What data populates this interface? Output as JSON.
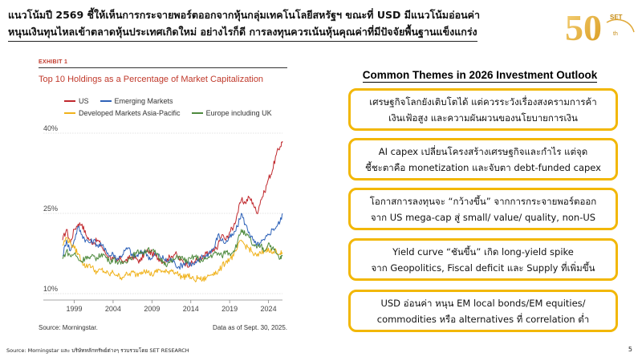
{
  "slide": {
    "title_line1": "แนวโน้มปี 2569 ชี้ให้เห็นการกระจายพอร์ตออกจากหุ้นกลุ่มเทคโนโลยีสหรัฐฯ ขณะที่ USD มีแนวโน้มอ่อนค่า",
    "title_line2": "หนุนเงินทุนไหลเข้าตลาดหุ้นประเทศเกิดใหม่ อย่างไรก็ดี การลงทุนควรเน้นหุ้นคุณค่าที่มีปัจจัยพื้นฐานแข็งแกร่ง",
    "footer_source": "Source: Morningstar และ บริษัทหลักทรัพย์ต่างๆ รวบรวมโดย SET RESEARCH",
    "page_number": "5"
  },
  "logo": {
    "text": "50",
    "superscript": "SET",
    "suffix": "th",
    "color": "#e8b341"
  },
  "chart_panel": {
    "exhibit_label": "EXHIBIT 1",
    "source": "Source: Morningstar.",
    "as_of": "Data as of Sept. 30, 2025."
  },
  "chart_data": {
    "type": "line",
    "title": "Top 10 Holdings as a Percentage of Market Capitalization",
    "x_ticks": [
      "1999",
      "2004",
      "2009",
      "2014",
      "2019",
      "2024"
    ],
    "y_ticks": [
      "40%",
      "25%",
      "10%"
    ],
    "ylim": [
      10,
      40
    ],
    "xlim": [
      1997.5,
      2025.8
    ],
    "grid": "horizontal",
    "legend_position": "top-left",
    "series": [
      {
        "name": "US",
        "color": "#c0282d",
        "points": [
          [
            1997.5,
            20
          ],
          [
            1998.0,
            22
          ],
          [
            1998.5,
            19.5
          ],
          [
            1999.0,
            22
          ],
          [
            1999.5,
            23
          ],
          [
            2000.0,
            23
          ],
          [
            2000.5,
            21
          ],
          [
            2001.0,
            20
          ],
          [
            2001.5,
            19.5
          ],
          [
            2002.0,
            20
          ],
          [
            2002.5,
            19
          ],
          [
            2003.0,
            17.5
          ],
          [
            2003.5,
            17
          ],
          [
            2004.0,
            16.5
          ],
          [
            2004.5,
            16
          ],
          [
            2005.0,
            16.5
          ],
          [
            2005.5,
            16
          ],
          [
            2006.0,
            16.5
          ],
          [
            2006.5,
            17
          ],
          [
            2007.0,
            16.5
          ],
          [
            2007.5,
            16
          ],
          [
            2008.0,
            17.5
          ],
          [
            2008.5,
            18
          ],
          [
            2009.0,
            17.5
          ],
          [
            2009.5,
            17
          ],
          [
            2010.0,
            16.5
          ],
          [
            2010.5,
            16
          ],
          [
            2011.0,
            16.5
          ],
          [
            2011.5,
            17
          ],
          [
            2012.0,
            17.5
          ],
          [
            2012.5,
            16.5
          ],
          [
            2013.0,
            16
          ],
          [
            2013.5,
            15.5
          ],
          [
            2014.0,
            15.5
          ],
          [
            2014.5,
            16
          ],
          [
            2015.0,
            16.5
          ],
          [
            2015.5,
            16.5
          ],
          [
            2016.0,
            17.5
          ],
          [
            2016.5,
            17.5
          ],
          [
            2017.0,
            18
          ],
          [
            2017.5,
            19
          ],
          [
            2018.0,
            21
          ],
          [
            2018.5,
            20
          ],
          [
            2019.0,
            21.5
          ],
          [
            2019.5,
            22.5
          ],
          [
            2020.0,
            25
          ],
          [
            2020.5,
            27.5
          ],
          [
            2021.0,
            27
          ],
          [
            2021.5,
            28
          ],
          [
            2022.0,
            27
          ],
          [
            2022.5,
            25
          ],
          [
            2023.0,
            27.5
          ],
          [
            2023.5,
            29
          ],
          [
            2024.0,
            31.5
          ],
          [
            2024.5,
            33
          ],
          [
            2025.0,
            36
          ],
          [
            2025.5,
            37.5
          ],
          [
            2025.8,
            38.5
          ]
        ]
      },
      {
        "name": "Emerging Markets",
        "color": "#2e62b8",
        "points": [
          [
            1997.5,
            17
          ],
          [
            1998.0,
            20
          ],
          [
            1998.5,
            18
          ],
          [
            1999.0,
            20
          ],
          [
            1999.5,
            22.5
          ],
          [
            2000.0,
            21
          ],
          [
            2000.5,
            20
          ],
          [
            2001.0,
            19.5
          ],
          [
            2001.5,
            20
          ],
          [
            2002.0,
            19
          ],
          [
            2002.5,
            19
          ],
          [
            2003.0,
            18.5
          ],
          [
            2003.5,
            17
          ],
          [
            2004.0,
            17.5
          ],
          [
            2004.5,
            16.5
          ],
          [
            2005.0,
            17
          ],
          [
            2005.5,
            18
          ],
          [
            2006.0,
            18.5
          ],
          [
            2006.5,
            17
          ],
          [
            2007.0,
            17
          ],
          [
            2007.5,
            17.5
          ],
          [
            2008.0,
            18
          ],
          [
            2008.5,
            17
          ],
          [
            2009.0,
            16.5
          ],
          [
            2009.5,
            17.5
          ],
          [
            2010.0,
            17
          ],
          [
            2010.5,
            16.5
          ],
          [
            2011.0,
            16
          ],
          [
            2011.5,
            16.5
          ],
          [
            2012.0,
            15.5
          ],
          [
            2012.5,
            15
          ],
          [
            2013.0,
            15.5
          ],
          [
            2013.5,
            16
          ],
          [
            2014.0,
            15.5
          ],
          [
            2014.5,
            15.5
          ],
          [
            2015.0,
            16
          ],
          [
            2015.5,
            17
          ],
          [
            2016.0,
            17
          ],
          [
            2016.5,
            18
          ],
          [
            2017.0,
            18.5
          ],
          [
            2017.5,
            21
          ],
          [
            2018.0,
            20
          ],
          [
            2018.5,
            19.5
          ],
          [
            2019.0,
            20.5
          ],
          [
            2019.5,
            21
          ],
          [
            2020.0,
            22.5
          ],
          [
            2020.5,
            25
          ],
          [
            2021.0,
            23
          ],
          [
            2021.5,
            21.5
          ],
          [
            2022.0,
            20
          ],
          [
            2022.5,
            19
          ],
          [
            2023.0,
            19.5
          ],
          [
            2023.5,
            20
          ],
          [
            2024.0,
            21
          ],
          [
            2024.5,
            22
          ],
          [
            2025.0,
            22.5
          ],
          [
            2025.5,
            23.5
          ],
          [
            2025.8,
            25
          ]
        ]
      },
      {
        "name": "Developed Markets Asia-Pacific",
        "color": "#f0b21b",
        "points": [
          [
            1997.5,
            19
          ],
          [
            1998.0,
            20.5
          ],
          [
            1998.5,
            19.5
          ],
          [
            1999.0,
            18.5
          ],
          [
            1999.5,
            17.5
          ],
          [
            2000.0,
            16
          ],
          [
            2000.5,
            15
          ],
          [
            2001.0,
            15.5
          ],
          [
            2001.5,
            14.5
          ],
          [
            2002.0,
            14
          ],
          [
            2002.5,
            14.5
          ],
          [
            2003.0,
            14
          ],
          [
            2003.5,
            13.5
          ],
          [
            2004.0,
            14
          ],
          [
            2004.5,
            13.5
          ],
          [
            2005.0,
            13
          ],
          [
            2005.5,
            13.5
          ],
          [
            2006.0,
            13.5
          ],
          [
            2006.5,
            14
          ],
          [
            2007.0,
            13.5
          ],
          [
            2007.5,
            14
          ],
          [
            2008.0,
            14.5
          ],
          [
            2008.5,
            14
          ],
          [
            2009.0,
            13.5
          ],
          [
            2009.5,
            14
          ],
          [
            2010.0,
            14.5
          ],
          [
            2010.5,
            14
          ],
          [
            2011.0,
            14
          ],
          [
            2011.5,
            14.5
          ],
          [
            2012.0,
            14
          ],
          [
            2012.5,
            13.5
          ],
          [
            2013.0,
            13
          ],
          [
            2013.5,
            13.5
          ],
          [
            2014.0,
            13
          ],
          [
            2014.5,
            12.5
          ],
          [
            2015.0,
            13
          ],
          [
            2015.5,
            12.5
          ],
          [
            2016.0,
            13
          ],
          [
            2016.5,
            13.5
          ],
          [
            2017.0,
            14
          ],
          [
            2017.5,
            14
          ],
          [
            2018.0,
            15
          ],
          [
            2018.5,
            16
          ],
          [
            2019.0,
            16.5
          ],
          [
            2019.5,
            17
          ],
          [
            2020.0,
            18.5
          ],
          [
            2020.5,
            20
          ],
          [
            2021.0,
            19
          ],
          [
            2021.5,
            18.5
          ],
          [
            2022.0,
            17.5
          ],
          [
            2022.5,
            17
          ],
          [
            2023.0,
            17.5
          ],
          [
            2023.5,
            18
          ],
          [
            2024.0,
            18.5
          ],
          [
            2024.5,
            17.5
          ],
          [
            2025.0,
            18
          ],
          [
            2025.5,
            17.5
          ],
          [
            2025.8,
            17.5
          ]
        ]
      },
      {
        "name": "Europe including UK",
        "color": "#4e8a3e",
        "points": [
          [
            1997.5,
            16.5
          ],
          [
            1998.0,
            18
          ],
          [
            1998.5,
            17
          ],
          [
            1999.0,
            17.5
          ],
          [
            1999.5,
            16.5
          ],
          [
            2000.0,
            16
          ],
          [
            2000.5,
            17
          ],
          [
            2001.0,
            16.5
          ],
          [
            2001.5,
            17
          ],
          [
            2002.0,
            16.5
          ],
          [
            2002.5,
            17.5
          ],
          [
            2003.0,
            17
          ],
          [
            2003.5,
            16
          ],
          [
            2004.0,
            16.5
          ],
          [
            2004.5,
            16
          ],
          [
            2005.0,
            15.5
          ],
          [
            2005.5,
            16
          ],
          [
            2006.0,
            16.5
          ],
          [
            2006.5,
            17
          ],
          [
            2007.0,
            17.5
          ],
          [
            2007.5,
            18
          ],
          [
            2008.0,
            17.5
          ],
          [
            2008.5,
            18.5
          ],
          [
            2009.0,
            18
          ],
          [
            2009.5,
            17.5
          ],
          [
            2010.0,
            16.5
          ],
          [
            2010.5,
            16
          ],
          [
            2011.0,
            15.5
          ],
          [
            2011.5,
            16
          ],
          [
            2012.0,
            16.5
          ],
          [
            2012.5,
            17
          ],
          [
            2013.0,
            16.5
          ],
          [
            2013.5,
            16
          ],
          [
            2014.0,
            16.5
          ],
          [
            2014.5,
            17
          ],
          [
            2015.0,
            16.5
          ],
          [
            2015.5,
            16
          ],
          [
            2016.0,
            16.5
          ],
          [
            2016.5,
            17
          ],
          [
            2017.0,
            17.5
          ],
          [
            2017.5,
            17.5
          ],
          [
            2018.0,
            17
          ],
          [
            2018.5,
            18
          ],
          [
            2019.0,
            17.5
          ],
          [
            2019.5,
            18
          ],
          [
            2020.0,
            19.5
          ],
          [
            2020.5,
            22
          ],
          [
            2021.0,
            21
          ],
          [
            2021.5,
            20.5
          ],
          [
            2022.0,
            19
          ],
          [
            2022.5,
            18.5
          ],
          [
            2023.0,
            19
          ],
          [
            2023.5,
            18
          ],
          [
            2024.0,
            19.5
          ],
          [
            2024.5,
            18.5
          ],
          [
            2025.0,
            17.5
          ],
          [
            2025.5,
            16.5
          ],
          [
            2025.8,
            17
          ]
        ]
      }
    ]
  },
  "themes": {
    "heading": "Common Themes in 2026 Investment Outlook",
    "items": [
      {
        "line1": "เศรษฐกิจโลกยังเติบโตได้ แต่ควรระวังเรื่องสงครามการค้า",
        "line2": "เงินเฟ้อสูง และความผันผวนของนโยบายการเงิน"
      },
      {
        "line1": "AI capex เปลี่ยนโครงสร้างเศรษฐกิจและกำไร แต่จุด",
        "line2": "ชี้ชะตาคือ monetization และจับตา debt-funded capex"
      },
      {
        "line1": "โอกาสการลงทุนจะ “กว้างขึ้น” จากการกระจายพอร์ตออก",
        "line2": "จาก US mega-cap สู่ small/ value/ quality, non-US"
      },
      {
        "line1": "Yield curve “ชันขึ้น” เกิด long-yield spike",
        "line2": "จาก Geopolitics, Fiscal deficit และ Supply ที่เพิ่มขึ้น"
      },
      {
        "line1": "USD อ่อนค่า หนุน EM local bonds/EM equities/",
        "line2": "commodities หรือ alternatives ที่ correlation ต่ำ"
      }
    ]
  }
}
